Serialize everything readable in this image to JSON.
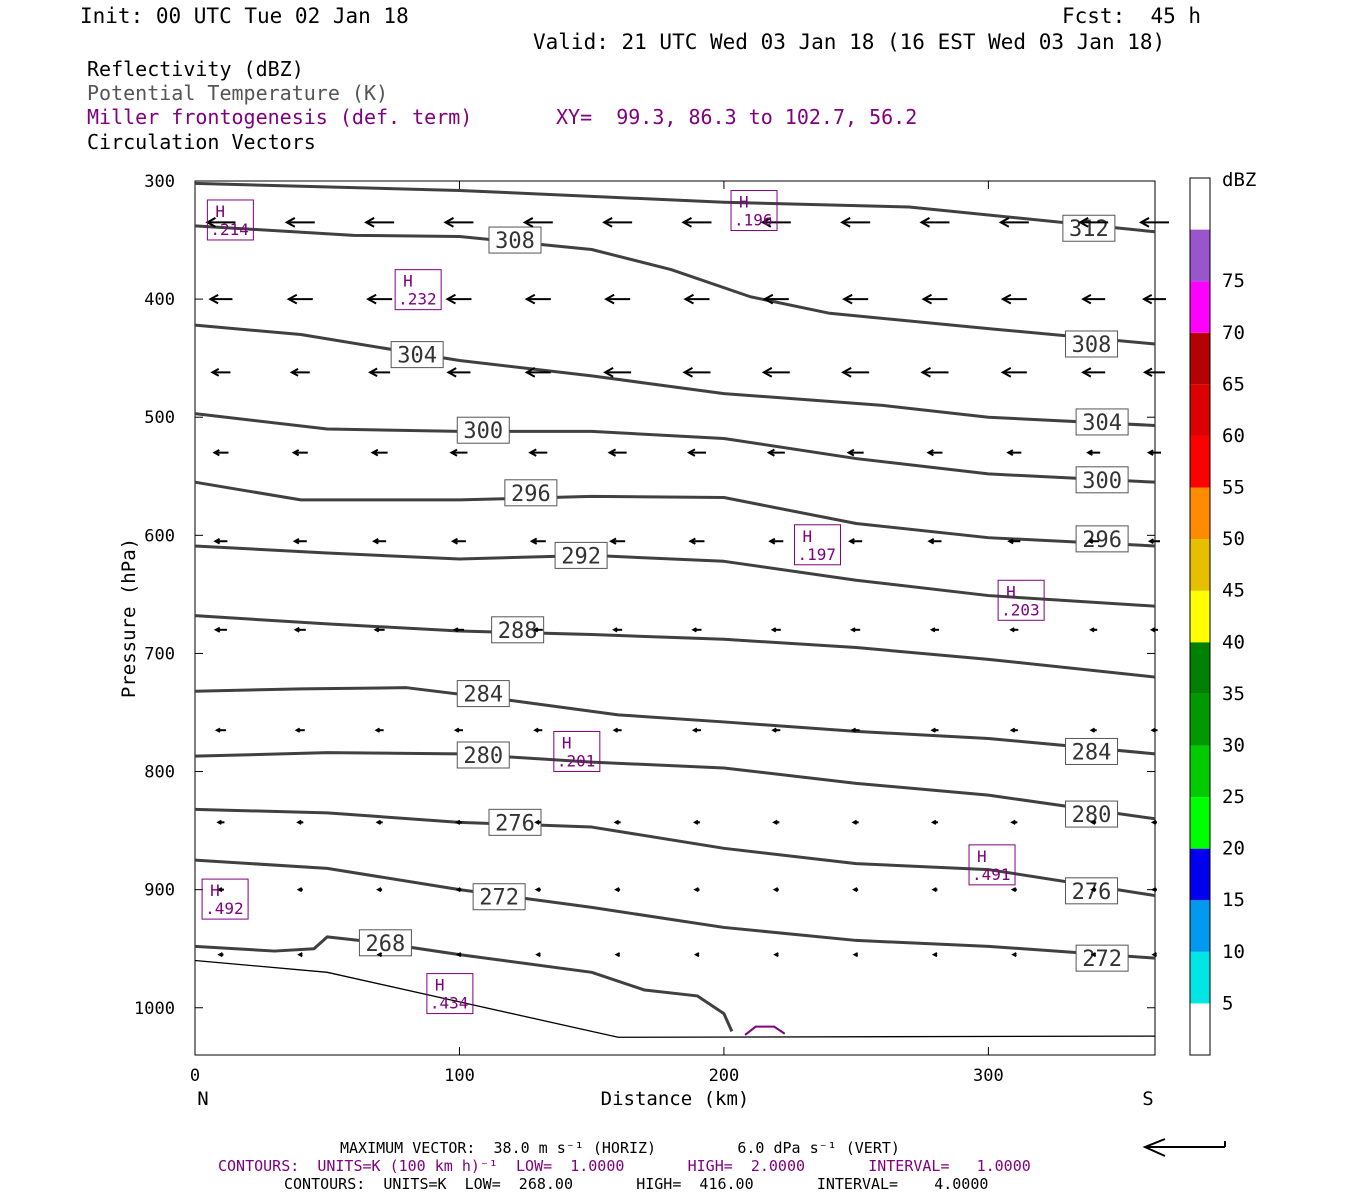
{
  "header": {
    "init": "Init: 00 UTC Tue 02 Jan 18",
    "fcst": "Fcst:  45 h",
    "valid": "Valid: 21 UTC Wed 03 Jan 18 (16 EST Wed 03 Jan 18)"
  },
  "legend": {
    "line1": "Reflectivity (dBZ)",
    "line2": "Potential Temperature (K)",
    "line3": "Miller frontogenesis (def. term)",
    "xy": "XY=  99.3, 86.3 to 102.7, 56.2",
    "line4": "Circulation Vectors"
  },
  "colors": {
    "theta_line": "#404040",
    "frontogenesis": "#800080",
    "vectors": "#000000"
  },
  "chart_data": {
    "type": "cross-section",
    "xlabel": "Distance (km)",
    "ylabel": "Pressure (hPa)",
    "xlim": [
      0,
      363
    ],
    "ylim": [
      1040,
      300
    ],
    "x_ticks": [
      0,
      100,
      200,
      300
    ],
    "y_ticks": [
      300,
      400,
      500,
      600,
      700,
      800,
      900,
      1000
    ],
    "x_end_labels": {
      "left": "N",
      "right": "S"
    },
    "theta_contours": [
      {
        "value": 312,
        "pts": [
          [
            0,
            302
          ],
          [
            100,
            308
          ],
          [
            200,
            318
          ],
          [
            270,
            322
          ],
          [
            363,
            343
          ]
        ],
        "labels": [
          [
            338,
            340
          ]
        ]
      },
      {
        "value": 308,
        "pts": [
          [
            0,
            338
          ],
          [
            60,
            346
          ],
          [
            100,
            347
          ],
          [
            150,
            358
          ],
          [
            180,
            375
          ],
          [
            210,
            398
          ],
          [
            240,
            412
          ],
          [
            300,
            425
          ],
          [
            363,
            438
          ]
        ],
        "labels": [
          [
            121,
            350
          ],
          [
            339,
            438
          ]
        ]
      },
      {
        "value": 304,
        "pts": [
          [
            0,
            422
          ],
          [
            40,
            430
          ],
          [
            100,
            452
          ],
          [
            150,
            465
          ],
          [
            200,
            480
          ],
          [
            260,
            490
          ],
          [
            300,
            500
          ],
          [
            363,
            507
          ]
        ],
        "labels": [
          [
            84,
            447
          ],
          [
            343,
            504
          ]
        ]
      },
      {
        "value": 300,
        "pts": [
          [
            0,
            497
          ],
          [
            50,
            510
          ],
          [
            100,
            512
          ],
          [
            150,
            512
          ],
          [
            200,
            518
          ],
          [
            250,
            535
          ],
          [
            300,
            548
          ],
          [
            363,
            555
          ]
        ],
        "labels": [
          [
            109,
            511
          ],
          [
            343,
            553
          ]
        ]
      },
      {
        "value": 296,
        "pts": [
          [
            0,
            555
          ],
          [
            40,
            570
          ],
          [
            100,
            570
          ],
          [
            150,
            567
          ],
          [
            200,
            568
          ],
          [
            250,
            590
          ],
          [
            300,
            602
          ],
          [
            363,
            609
          ]
        ],
        "labels": [
          [
            127,
            564
          ],
          [
            343,
            603
          ]
        ]
      },
      {
        "value": 292,
        "pts": [
          [
            0,
            609
          ],
          [
            50,
            615
          ],
          [
            100,
            620
          ],
          [
            150,
            617
          ],
          [
            200,
            622
          ],
          [
            250,
            638
          ],
          [
            300,
            651
          ],
          [
            363,
            660
          ]
        ],
        "labels": [
          [
            146,
            617
          ]
        ]
      },
      {
        "value": 288,
        "pts": [
          [
            0,
            668
          ],
          [
            50,
            675
          ],
          [
            100,
            681
          ],
          [
            150,
            684
          ],
          [
            200,
            688
          ],
          [
            250,
            695
          ],
          [
            300,
            705
          ],
          [
            363,
            720
          ]
        ],
        "labels": [
          [
            122,
            680
          ]
        ]
      },
      {
        "value": 284,
        "pts": [
          [
            0,
            732
          ],
          [
            40,
            730
          ],
          [
            80,
            729
          ],
          [
            120,
            740
          ],
          [
            160,
            752
          ],
          [
            200,
            758
          ],
          [
            250,
            766
          ],
          [
            300,
            772
          ],
          [
            363,
            785
          ]
        ],
        "labels": [
          [
            109,
            734
          ],
          [
            339,
            783
          ]
        ]
      },
      {
        "value": 280,
        "pts": [
          [
            0,
            787
          ],
          [
            50,
            784
          ],
          [
            100,
            785
          ],
          [
            150,
            792
          ],
          [
            200,
            797
          ],
          [
            250,
            810
          ],
          [
            300,
            820
          ],
          [
            363,
            840
          ]
        ],
        "labels": [
          [
            109,
            786
          ],
          [
            339,
            836
          ]
        ]
      },
      {
        "value": 276,
        "pts": [
          [
            0,
            832
          ],
          [
            50,
            835
          ],
          [
            100,
            843
          ],
          [
            150,
            847
          ],
          [
            200,
            865
          ],
          [
            250,
            878
          ],
          [
            300,
            883
          ],
          [
            363,
            905
          ]
        ],
        "labels": [
          [
            121,
            843
          ],
          [
            339,
            901
          ]
        ]
      },
      {
        "value": 272,
        "pts": [
          [
            0,
            875
          ],
          [
            50,
            882
          ],
          [
            100,
            900
          ],
          [
            150,
            915
          ],
          [
            200,
            932
          ],
          [
            250,
            943
          ],
          [
            300,
            948
          ],
          [
            363,
            958
          ]
        ],
        "labels": [
          [
            115,
            906
          ],
          [
            343,
            958
          ]
        ]
      },
      {
        "value": 268,
        "pts": [
          [
            0,
            948
          ],
          [
            30,
            952
          ],
          [
            45,
            950
          ],
          [
            50,
            940
          ],
          [
            70,
            945
          ],
          [
            100,
            955
          ],
          [
            150,
            970
          ],
          [
            170,
            985
          ],
          [
            190,
            990
          ],
          [
            200,
            1005
          ],
          [
            203,
            1020
          ]
        ],
        "labels": [
          [
            72,
            945
          ]
        ]
      }
    ],
    "terrain": [
      [
        0,
        960
      ],
      [
        50,
        970
      ],
      [
        100,
        995
      ],
      [
        150,
        1020
      ],
      [
        160,
        1025
      ],
      [
        363,
        1024
      ]
    ],
    "frontogenesis_maxima": [
      {
        "label": "H",
        "value": ".214",
        "x": 13,
        "p": 333
      },
      {
        "label": "H",
        "value": ".196",
        "x": 211,
        "p": 325
      },
      {
        "label": "H",
        "value": ".232",
        "x": 84,
        "p": 392
      },
      {
        "label": "H",
        "value": ".197",
        "x": 235,
        "p": 608
      },
      {
        "label": "H",
        "value": ".203",
        "x": 312,
        "p": 655
      },
      {
        "label": "H",
        "value": ".201",
        "x": 144,
        "p": 783
      },
      {
        "label": "H",
        "value": ".491",
        "x": 301,
        "p": 879
      },
      {
        "label": "H",
        "value": ".492",
        "x": 11,
        "p": 908
      },
      {
        "label": "H",
        "value": ".434",
        "x": 96,
        "p": 988
      }
    ],
    "vectors": {
      "x_positions": [
        10,
        40,
        70,
        100,
        130,
        160,
        190,
        220,
        250,
        280,
        310,
        340,
        363
      ],
      "levels": [
        {
          "p": 335,
          "len": [
            28,
            28,
            28,
            28,
            28,
            28,
            28,
            28,
            28,
            28,
            28,
            28,
            28
          ]
        },
        {
          "p": 400,
          "len": [
            22,
            24,
            24,
            24,
            24,
            24,
            24,
            24,
            24,
            24,
            24,
            22,
            22
          ]
        },
        {
          "p": 462,
          "len": [
            18,
            18,
            20,
            22,
            24,
            26,
            26,
            26,
            26,
            26,
            24,
            22,
            20
          ]
        },
        {
          "p": 530,
          "len": [
            14,
            14,
            15,
            16,
            17,
            17,
            17,
            16,
            15,
            14,
            13,
            12,
            12
          ]
        },
        {
          "p": 605,
          "len": [
            12,
            12,
            12,
            13,
            14,
            14,
            14,
            13,
            12,
            12,
            11,
            10,
            10
          ]
        },
        {
          "p": 680,
          "len": [
            11,
            10,
            9,
            9,
            8,
            8,
            8,
            8,
            8,
            7,
            7,
            6,
            6
          ]
        },
        {
          "p": 765,
          "len": [
            9,
            8,
            7,
            7,
            7,
            7,
            7,
            7,
            7,
            6,
            6,
            5,
            5
          ]
        },
        {
          "p": 843,
          "len": [
            6,
            5,
            5,
            5,
            5,
            5,
            5,
            5,
            5,
            5,
            5,
            4,
            4
          ]
        },
        {
          "p": 900,
          "len": [
            5,
            4,
            4,
            4,
            4,
            4,
            4,
            4,
            4,
            4,
            4,
            4,
            4
          ]
        },
        {
          "p": 955,
          "len": [
            4,
            3,
            3,
            3,
            3,
            3,
            3,
            3,
            3,
            3,
            3,
            3,
            3
          ]
        }
      ]
    },
    "colorbar": {
      "title": "dBZ",
      "ticks": [
        5,
        10,
        15,
        20,
        25,
        30,
        35,
        40,
        45,
        50,
        55,
        60,
        65,
        70,
        75
      ],
      "colors": [
        "#ffffff",
        "#00e6e6",
        "#0099ee",
        "#0000ee",
        "#00ff00",
        "#00cc00",
        "#009900",
        "#008000",
        "#ffff00",
        "#e6bf00",
        "#ff8c00",
        "#ff0000",
        "#dd0000",
        "#b40000",
        "#ff00ff",
        "#9955cc",
        "#ffffff"
      ]
    }
  },
  "footer": {
    "max_vector": "MAXIMUM VECTOR:  38.0 m s⁻¹ (HORIZ)         6.0 dPa s⁻¹ (VERT)",
    "contours1": "CONTOURS:  UNITS=K (100 km h)⁻¹  LOW=  1.0000       HIGH=  2.0000       INTERVAL=   1.0000",
    "contours2": "CONTOURS:  UNITS=K  LOW=  268.00       HIGH=  416.00       INTERVAL=    4.0000"
  }
}
